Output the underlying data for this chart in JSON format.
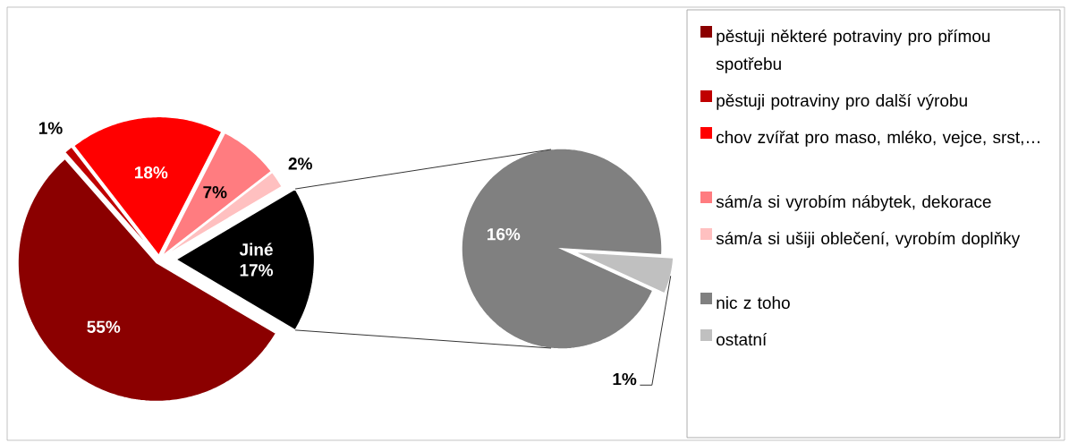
{
  "chart_data": [
    {
      "type": "pie",
      "categories": [
        "pěstuji některé potraviny pro přímou spotřebu",
        "pěstuji potraviny pro další výrobu",
        "chov zvířat pro maso, mléko, vejce, srst,…",
        "sám/a si vyrobím nábytek, dekorace",
        "sám/a si ušiji oblečení, vyrobím doplňky",
        "Jiné"
      ],
      "values": [
        55,
        1,
        18,
        7,
        2,
        17
      ],
      "colors": [
        "#8b0000",
        "#c00000",
        "#ff0000",
        "#ff7c80",
        "#ffc0c0",
        "#000000"
      ],
      "value_labels": [
        "55%",
        "1%",
        "18%",
        "7%",
        "2%",
        "17%"
      ],
      "legend": "right"
    },
    {
      "type": "pie",
      "categories": [
        "nic z toho",
        "ostatní"
      ],
      "values": [
        16,
        1
      ],
      "colors": [
        "#808080",
        "#c0c0c0"
      ],
      "value_labels": [
        "16%",
        "1%"
      ],
      "legend": "right"
    }
  ]
}
